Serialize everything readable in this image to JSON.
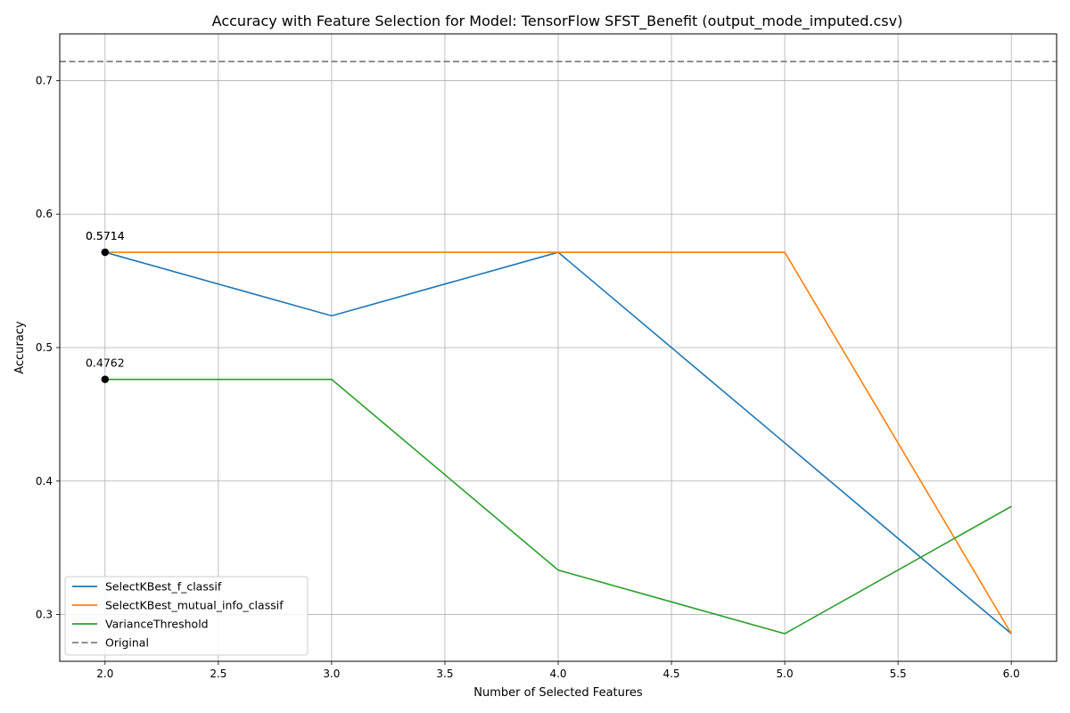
{
  "chart_data": {
    "type": "line",
    "title": "Accuracy with Feature Selection for Model: TensorFlow SFST_Benefit (output_mode_imputed.csv)",
    "xlabel": "Number of Selected Features",
    "ylabel": "Accuracy",
    "xlim": [
      1.8,
      6.2
    ],
    "ylim": [
      0.265,
      0.735
    ],
    "xticks": [
      "2.0",
      "2.5",
      "3.0",
      "3.5",
      "4.0",
      "4.5",
      "5.0",
      "5.5",
      "6.0"
    ],
    "yticks": [
      "0.3",
      "0.4",
      "0.5",
      "0.6",
      "0.7"
    ],
    "grid": true,
    "legend_position": "bottom-left",
    "x": [
      2,
      3,
      4,
      5,
      6
    ],
    "series": [
      {
        "name": "SelectKBest_f_classif",
        "color": "#1f77b4",
        "values": [
          0.5714,
          0.5238,
          0.5714,
          0.4286,
          0.2857
        ]
      },
      {
        "name": "SelectKBest_mutual_info_classif",
        "color": "#ff7f0e",
        "values": [
          0.5714,
          0.5714,
          0.5714,
          0.5714,
          0.2857
        ]
      },
      {
        "name": "VarianceThreshold",
        "color": "#2ca02c",
        "values": [
          0.4762,
          0.4762,
          0.3333,
          0.2857,
          0.381
        ]
      }
    ],
    "reference_line": {
      "name": "Original",
      "value": 0.7143,
      "color": "#808080",
      "style": "dashed"
    },
    "annotations": [
      {
        "x": 2,
        "y": 0.5714,
        "text": "0.5714"
      },
      {
        "x": 2,
        "y": 0.5714,
        "text": "0.5714"
      },
      {
        "x": 2,
        "y": 0.4762,
        "text": "0.4762"
      }
    ]
  }
}
